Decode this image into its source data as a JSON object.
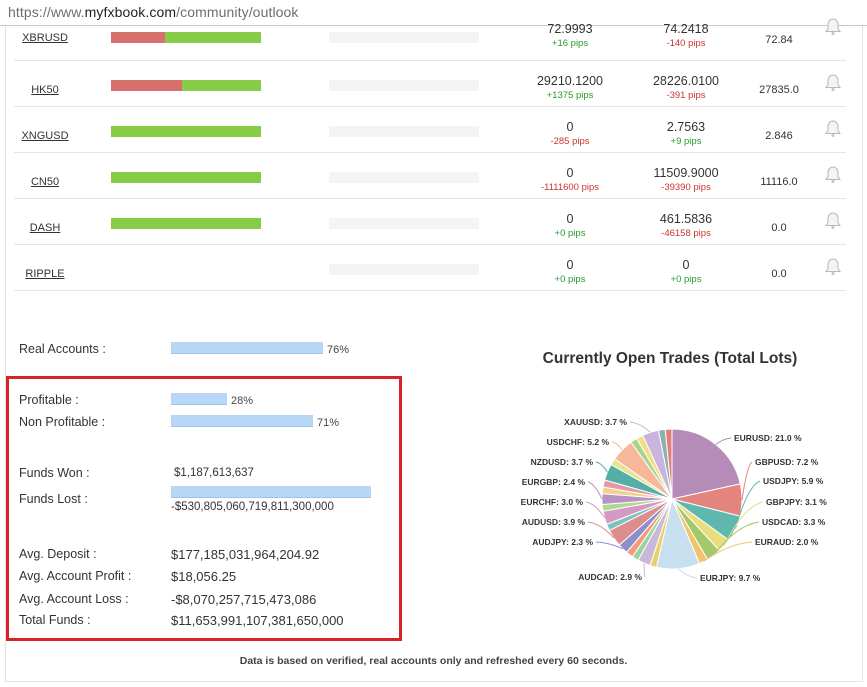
{
  "browser": {
    "url_prefix": "https://www.",
    "url_domain": "myfxbook.com",
    "url_path": "/community/outlook"
  },
  "rows": [
    {
      "symbol": "XBRUSD",
      "short_pct": 36,
      "price1": "72.9993",
      "pips1": "+16 pips",
      "pips1_sign": "pos",
      "price2": "74.2418",
      "pips2": "-140 pips",
      "pips2_sign": "neg",
      "current": "72.84",
      "has_bar": true
    },
    {
      "symbol": "HK50",
      "short_pct": 47,
      "price1": "29210.1200",
      "pips1": "+1375 pips",
      "pips1_sign": "pos",
      "price2": "28226.0100",
      "pips2": "-391 pips",
      "pips2_sign": "neg",
      "current": "27835.0",
      "has_bar": true
    },
    {
      "symbol": "XNGUSD",
      "short_pct": 0,
      "price1": "0",
      "pips1": "-285 pips",
      "pips1_sign": "neg",
      "price2": "2.7563",
      "pips2": "+9 pips",
      "pips2_sign": "pos",
      "current": "2.846",
      "has_bar": true
    },
    {
      "symbol": "CN50",
      "short_pct": 0,
      "price1": "0",
      "pips1": "-1111600 pips",
      "pips1_sign": "neg",
      "price2": "11509.9000",
      "pips2": "-39390 pips",
      "pips2_sign": "neg",
      "current": "11116.0",
      "has_bar": true
    },
    {
      "symbol": "DASH",
      "short_pct": 0,
      "price1": "0",
      "pips1": "+0 pips",
      "pips1_sign": "pos",
      "price2": "461.5836",
      "pips2": "-46158 pips",
      "pips2_sign": "neg",
      "current": "0.0",
      "has_bar": true
    },
    {
      "symbol": "RIPPLE",
      "short_pct": 0,
      "price1": "0",
      "pips1": "+0 pips",
      "pips1_sign": "pos",
      "price2": "0",
      "pips2": "+0 pips",
      "pips2_sign": "pos",
      "current": "0.0",
      "has_bar": false
    }
  ],
  "stats": {
    "real_accounts_label": "Real Accounts :",
    "real_accounts_pct": "76%",
    "real_accounts_value": 76,
    "profitable_label": "Profitable :",
    "profitable_pct": "28%",
    "profitable_value": 28,
    "non_profitable_label": "Non Profitable :",
    "non_profitable_pct": "71%",
    "non_profitable_value": 71,
    "funds_won_label": "Funds Won :",
    "funds_won_value": "$1,187,613,637",
    "funds_lost_label": "Funds Lost :",
    "funds_lost_value": "-$530,805,060,719,811,300,000",
    "avg_deposit_label": "Avg. Deposit :",
    "avg_deposit_value": "$177,185,031,964,204.92",
    "avg_profit_label": "Avg. Account Profit :",
    "avg_profit_value": "$18,056.25",
    "avg_loss_label": "Avg. Account Loss :",
    "avg_loss_value": "-$8,070,257,715,473,086",
    "total_funds_label": "Total Funds :",
    "total_funds_value": "$11,653,991,107,381,650,000"
  },
  "chart_data": {
    "type": "pie",
    "title": "Currently Open Trades (Total Lots)",
    "slices": [
      {
        "label": "EURUSD: 21.0 %",
        "value": 21.0,
        "color": "#b58bb8"
      },
      {
        "label": "GBPUSD: 7.2 %",
        "value": 7.2,
        "color": "#e4847e"
      },
      {
        "label": "USDJPY: 5.9 %",
        "value": 5.9,
        "color": "#5fb8ae"
      },
      {
        "label": "GBPJPY: 3.1 %",
        "value": 3.1,
        "color": "#e8df7c"
      },
      {
        "label": "USDCAD: 3.3 %",
        "value": 3.3,
        "color": "#a3c96a"
      },
      {
        "label": "EURAUD: 2.0 %",
        "value": 2.0,
        "color": "#f2c46a"
      },
      {
        "label": "EURJPY: 9.7 %",
        "value": 9.7,
        "color": "#c8dff0"
      },
      {
        "label": "",
        "value": 1.5,
        "color": "#e8d16a"
      },
      {
        "label": "AUDCAD: 2.9 %",
        "value": 2.9,
        "color": "#c9b8d8"
      },
      {
        "label": "",
        "value": 1.5,
        "color": "#9bd3a0"
      },
      {
        "label": "",
        "value": 1.6,
        "color": "#f29c7a"
      },
      {
        "label": "AUDJPY: 2.3 %",
        "value": 2.3,
        "color": "#8c8fc9"
      },
      {
        "label": "AUDUSD: 3.9 %",
        "value": 3.9,
        "color": "#de8d8d"
      },
      {
        "label": "",
        "value": 1.5,
        "color": "#7ec2c0"
      },
      {
        "label": "EURCHF: 3.0 %",
        "value": 3.0,
        "color": "#d49ac4"
      },
      {
        "label": "",
        "value": 1.5,
        "color": "#b0d890"
      },
      {
        "label": "EURGBP: 2.4 %",
        "value": 2.4,
        "color": "#b894c4"
      },
      {
        "label": "",
        "value": 1.5,
        "color": "#f2d28e"
      },
      {
        "label": "",
        "value": 1.6,
        "color": "#e49aa5"
      },
      {
        "label": "NZDUSD: 3.7 %",
        "value": 3.7,
        "color": "#53aea8"
      },
      {
        "label": "",
        "value": 1.5,
        "color": "#e6e48e"
      },
      {
        "label": "USDCHF: 5.2 %",
        "value": 5.2,
        "color": "#f6b898"
      },
      {
        "label": "",
        "value": 1.5,
        "color": "#a8d490"
      },
      {
        "label": "",
        "value": 1.5,
        "color": "#f2de82"
      },
      {
        "label": "XAUUSD: 3.7 %",
        "value": 3.7,
        "color": "#c8b4dc"
      },
      {
        "label": "",
        "value": 1.5,
        "color": "#8cb0b0"
      },
      {
        "label": "",
        "value": 1.5,
        "color": "#e0807a"
      }
    ]
  },
  "footer_text": "Data is based on verified, real accounts only and refreshed every 60 seconds."
}
